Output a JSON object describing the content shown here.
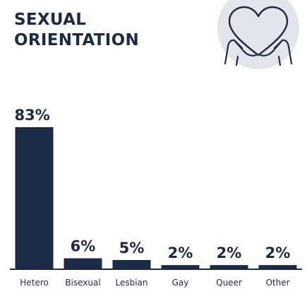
{
  "header": {
    "title_line1": "SEXUAL",
    "title_line2": "ORIENTATION",
    "emblem_icon": "heart-hands-icon"
  },
  "colors": {
    "bar": "#1c2b45",
    "text": "#1c2b45",
    "emblem_bg": "#e3e5ea",
    "axis": "#1c2b45"
  },
  "chart_data": {
    "type": "bar",
    "categories": [
      "Hetero",
      "Bisexual",
      "Lesbian",
      "Gay",
      "Queer",
      "Other"
    ],
    "values": [
      83,
      6,
      5,
      2,
      2,
      2
    ],
    "value_labels": [
      "83%",
      "6%",
      "5%",
      "2%",
      "2%",
      "2%"
    ],
    "unit": "%",
    "ylim": [
      0,
      83
    ],
    "grid": false,
    "legend": "none",
    "title": "SEXUAL ORIENTATION",
    "xlabel": "",
    "ylabel": ""
  }
}
